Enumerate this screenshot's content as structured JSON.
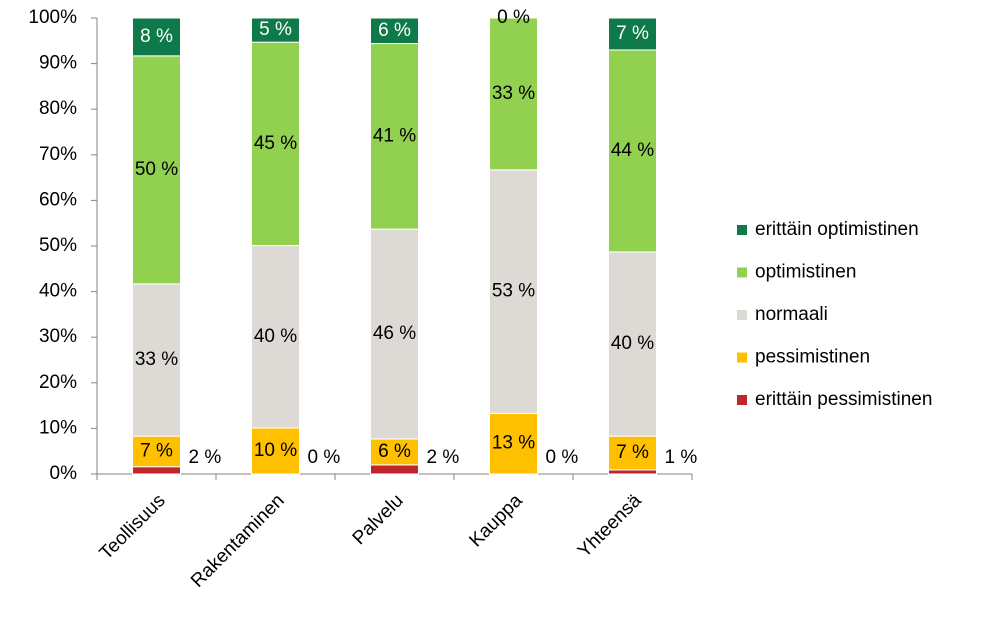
{
  "chart_data": {
    "type": "stacked_bar",
    "categories": [
      "Teollisuus",
      "Rakentaminen",
      "Palvelu",
      "Kauppa",
      "Yhteensä"
    ],
    "series": [
      {
        "name": "erittäin pessimistinen",
        "color": "#c0272d",
        "values": [
          1.6,
          0,
          2.0,
          0,
          0.9
        ],
        "value_labels": [
          "2 %",
          "0 %",
          "2 %",
          "0 %",
          "1 %"
        ]
      },
      {
        "name": "pessimistinen",
        "color": "#ffc000",
        "values": [
          6.7,
          10.1,
          5.7,
          13.3,
          7.4
        ],
        "value_labels": [
          "7 %",
          "10 %",
          "6 %",
          "13 %",
          "7 %"
        ]
      },
      {
        "name": "normaali",
        "color": "#ddd9d4",
        "values": [
          33.4,
          40,
          46,
          53.4,
          40.4
        ],
        "value_labels": [
          "33 %",
          "40 %",
          "46 %",
          "53 %",
          "40 %"
        ]
      },
      {
        "name": "optimistinen",
        "color": "#92d050",
        "values": [
          50,
          44.6,
          40.7,
          33.3,
          44.3
        ],
        "value_labels": [
          "50 %",
          "45 %",
          "41 %",
          "33 %",
          "44 %"
        ]
      },
      {
        "name": "erittäin optimistinen",
        "color": "#0e7a4a",
        "values": [
          8.3,
          5.3,
          5.6,
          0,
          7.0
        ],
        "value_labels": [
          "8 %",
          "5 %",
          "6 %",
          "0 %",
          "7 %"
        ]
      }
    ],
    "ylim": [
      0,
      100
    ],
    "yticks": [
      {
        "value": 0,
        "label": "0%"
      },
      {
        "value": 10,
        "label": "10%"
      },
      {
        "value": 20,
        "label": "20%"
      },
      {
        "value": 30,
        "label": "30%"
      },
      {
        "value": 40,
        "label": "40%"
      },
      {
        "value": 50,
        "label": "50%"
      },
      {
        "value": 60,
        "label": "60%"
      },
      {
        "value": 70,
        "label": "70%"
      },
      {
        "value": 80,
        "label": "80%"
      },
      {
        "value": 90,
        "label": "90%"
      },
      {
        "value": 100,
        "label": "100%"
      }
    ],
    "grid": false,
    "legend": "right"
  }
}
